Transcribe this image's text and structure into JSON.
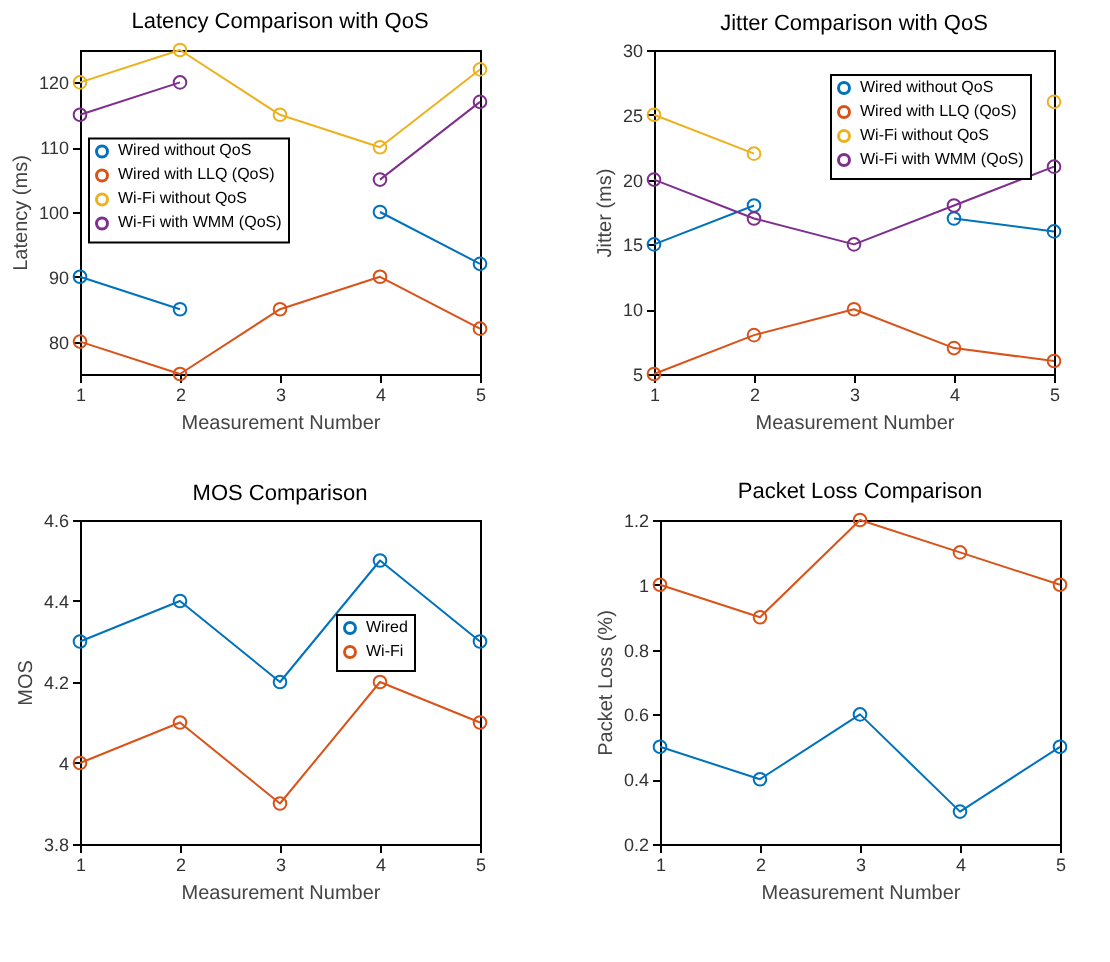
{
  "chart_data": [
    {
      "type": "line",
      "title": "Latency Comparison with QoS",
      "xlabel": "Measurement Number",
      "ylabel": "Latency (ms)",
      "x": [
        1,
        2,
        3,
        4,
        5
      ],
      "xlim": [
        1,
        5
      ],
      "xticks": [
        1,
        2,
        3,
        4,
        5
      ],
      "ylim": [
        75,
        125
      ],
      "yticks": [
        80,
        90,
        100,
        110,
        120
      ],
      "grid": false,
      "marker": "circle",
      "legend": "left",
      "series": [
        {
          "name": "Wired without QoS",
          "color": "#0072bd",
          "values": [
            90,
            85,
            null,
            100,
            92
          ]
        },
        {
          "name": "Wired with LLQ (QoS)",
          "color": "#d95319",
          "values": [
            80,
            75,
            85,
            90,
            82
          ]
        },
        {
          "name": "Wi-Fi without QoS",
          "color": "#edb120",
          "values": [
            120,
            125,
            115,
            110,
            122
          ]
        },
        {
          "name": "Wi-Fi with WMM (QoS)",
          "color": "#7e2f8e",
          "values": [
            115,
            120,
            null,
            105,
            117
          ]
        }
      ]
    },
    {
      "type": "line",
      "title": "Jitter Comparison with QoS",
      "xlabel": "Measurement Number",
      "ylabel": "Jitter (ms)",
      "x": [
        1,
        2,
        3,
        4,
        5
      ],
      "xlim": [
        1,
        5
      ],
      "xticks": [
        1,
        2,
        3,
        4,
        5
      ],
      "ylim": [
        5,
        30
      ],
      "yticks": [
        5,
        10,
        15,
        20,
        25,
        30
      ],
      "grid": false,
      "marker": "circle",
      "legend": "top right",
      "series": [
        {
          "name": "Wired without QoS",
          "color": "#0072bd",
          "values": [
            15,
            18,
            null,
            17,
            16
          ]
        },
        {
          "name": "Wired with LLQ (QoS)",
          "color": "#d95319",
          "values": [
            5,
            8,
            10,
            7,
            6
          ]
        },
        {
          "name": "Wi-Fi without QoS",
          "color": "#edb120",
          "values": [
            25,
            22,
            null,
            null,
            26
          ]
        },
        {
          "name": "Wi-Fi with WMM (QoS)",
          "color": "#7e2f8e",
          "values": [
            20,
            17,
            15,
            18,
            21
          ]
        }
      ]
    },
    {
      "type": "line",
      "title": "MOS Comparison",
      "xlabel": "Measurement Number",
      "ylabel": "MOS",
      "x": [
        1,
        2,
        3,
        4,
        5
      ],
      "xlim": [
        1,
        5
      ],
      "xticks": [
        1,
        2,
        3,
        4,
        5
      ],
      "ylim": [
        3.8,
        4.6
      ],
      "yticks": [
        3.8,
        4,
        4.2,
        4.4,
        4.6
      ],
      "grid": false,
      "marker": "circle",
      "legend": "right",
      "series": [
        {
          "name": "Wired",
          "color": "#0072bd",
          "values": [
            4.3,
            4.4,
            4.2,
            4.5,
            4.3
          ]
        },
        {
          "name": "Wi-Fi",
          "color": "#d95319",
          "values": [
            4.0,
            4.1,
            3.9,
            4.2,
            4.1
          ]
        }
      ]
    },
    {
      "type": "line",
      "title": "Packet Loss Comparison",
      "xlabel": "Measurement Number",
      "ylabel": "Packet Loss (%)",
      "x": [
        1,
        2,
        3,
        4,
        5
      ],
      "xlim": [
        1,
        5
      ],
      "xticks": [
        1,
        2,
        3,
        4,
        5
      ],
      "ylim": [
        0.2,
        1.2
      ],
      "yticks": [
        0.2,
        0.4,
        0.6,
        0.8,
        1,
        1.2
      ],
      "grid": false,
      "marker": "circle",
      "legend": "right",
      "series": [
        {
          "name": "Wired",
          "color": "#0072bd",
          "values": [
            0.5,
            0.4,
            0.6,
            0.3,
            0.5
          ]
        },
        {
          "name": "Wi-Fi",
          "color": "#d95319",
          "values": [
            1.0,
            0.9,
            1.2,
            1.1,
            1.0
          ]
        }
      ]
    }
  ]
}
